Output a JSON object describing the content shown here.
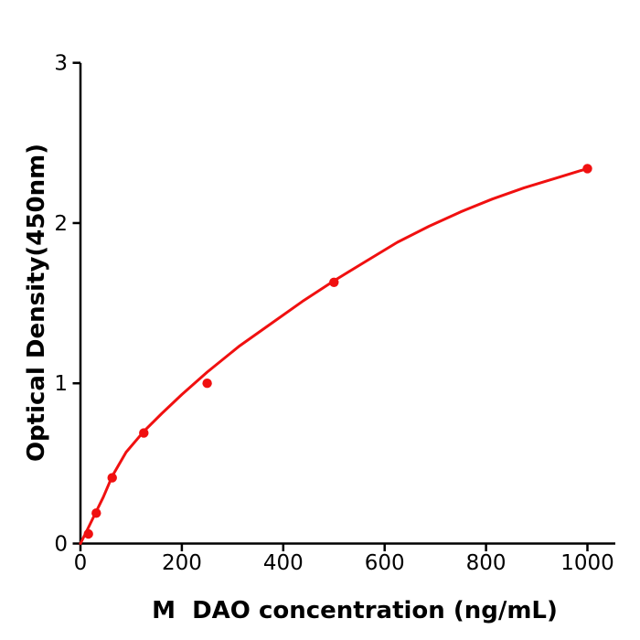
{
  "figure": {
    "background": "#ffffff",
    "axis_color": "#000000",
    "accent_red": "#f01010"
  },
  "chart_data": {
    "type": "scatter",
    "title": "",
    "xlabel": "M  DAO concentration (ng/mL)",
    "ylabel": "Optical Density(450nm)",
    "xlim": [
      0,
      1055
    ],
    "ylim": [
      0,
      3
    ],
    "x_ticks": [
      0,
      200,
      400,
      600,
      800,
      1000
    ],
    "y_ticks": [
      0,
      1,
      2,
      3
    ],
    "grid": false,
    "legend": null,
    "series": [
      {
        "name": "standard-points",
        "type": "scatter",
        "color": "#f01010",
        "marker_radius": 5.2,
        "x": [
          15.6,
          31.2,
          62.5,
          125,
          250,
          500,
          1000
        ],
        "y": [
          0.06,
          0.19,
          0.41,
          0.69,
          1.0,
          1.63,
          2.34
        ]
      },
      {
        "name": "fit-curve",
        "type": "line",
        "color": "#f01010",
        "line_width": 3,
        "x": [
          0,
          15.6,
          31.2,
          45,
          62.5,
          90,
          125,
          160,
          200,
          250,
          312.5,
          375,
          437.5,
          500,
          562.5,
          625,
          687.5,
          750,
          812.5,
          875,
          937.5,
          1000
        ],
        "y": [
          0,
          0.1,
          0.2,
          0.29,
          0.42,
          0.57,
          0.7,
          0.81,
          0.93,
          1.07,
          1.23,
          1.37,
          1.51,
          1.64,
          1.76,
          1.88,
          1.98,
          2.07,
          2.15,
          2.22,
          2.28,
          2.34
        ]
      }
    ]
  }
}
